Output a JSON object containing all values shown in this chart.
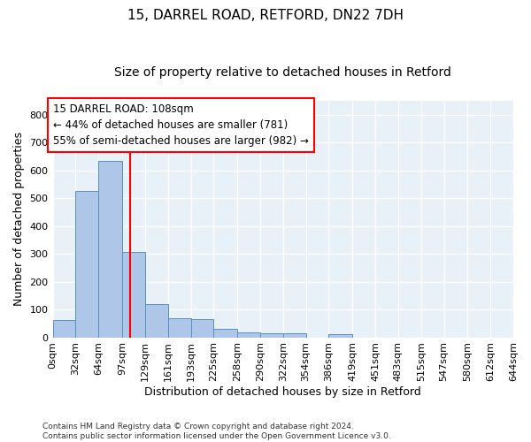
{
  "title1": "15, DARREL ROAD, RETFORD, DN22 7DH",
  "title2": "Size of property relative to detached houses in Retford",
  "xlabel": "Distribution of detached houses by size in Retford",
  "ylabel": "Number of detached properties",
  "footer": "Contains HM Land Registry data © Crown copyright and database right 2024.\nContains public sector information licensed under the Open Government Licence v3.0.",
  "annotation_title": "15 DARREL ROAD: 108sqm",
  "annotation_line1": "← 44% of detached houses are smaller (781)",
  "annotation_line2": "55% of semi-detached houses are larger (982) →",
  "bin_edges": [
    0,
    32,
    64,
    97,
    129,
    161,
    193,
    225,
    258,
    290,
    322,
    354,
    386,
    419,
    451,
    483,
    515,
    547,
    580,
    612,
    644
  ],
  "bar_heights": [
    63,
    524,
    635,
    308,
    120,
    68,
    65,
    30,
    17,
    15,
    13,
    0,
    10,
    0,
    0,
    0,
    0,
    0,
    0,
    0
  ],
  "bar_color": "#aec6e8",
  "bar_edge_color": "#5a8fc0",
  "vline_x": 108,
  "vline_color": "red",
  "bg_color": "#e8f0f8",
  "grid_color": "white",
  "ylim": [
    0,
    850
  ],
  "yticks": [
    0,
    100,
    200,
    300,
    400,
    500,
    600,
    700,
    800
  ],
  "annotation_box_color": "white",
  "annotation_box_edge": "red",
  "title1_fontsize": 11,
  "title2_fontsize": 10,
  "xlabel_fontsize": 9,
  "ylabel_fontsize": 9,
  "tick_fontsize": 8,
  "annotation_fontsize": 8.5
}
